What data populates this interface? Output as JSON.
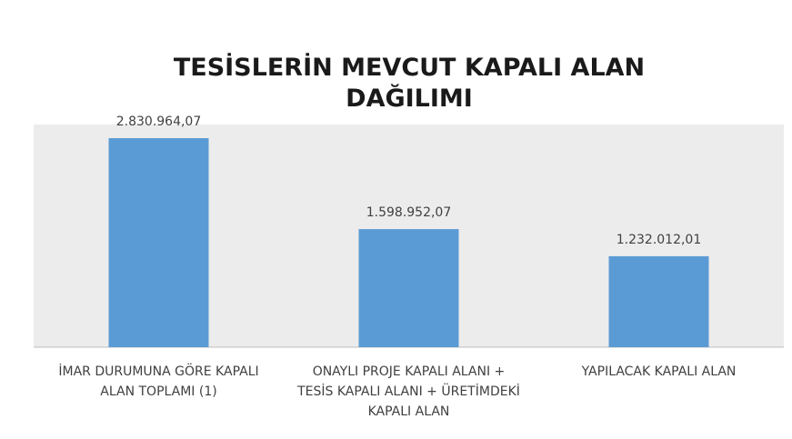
{
  "chart_data": {
    "type": "bar",
    "title": "TESİSLERİN MEVCUT KAPALI ALAN DAĞILIMI",
    "categories": [
      "İMAR DURUMUNA GÖRE KAPALI ALAN TOPLAMI (1)",
      "ONAYLI PROJE KAPALI ALANI + TESİS KAPALI ALANI + ÜRETİMDEKİ KAPALI ALAN",
      "YAPILACAK KAPALI ALAN"
    ],
    "values": [
      2830964.07,
      1598952.07,
      1232012.01
    ],
    "value_labels": [
      "2.830.964,07",
      "1.598.952,07",
      "1.232.012,01"
    ],
    "color": "#5b9bd5"
  }
}
